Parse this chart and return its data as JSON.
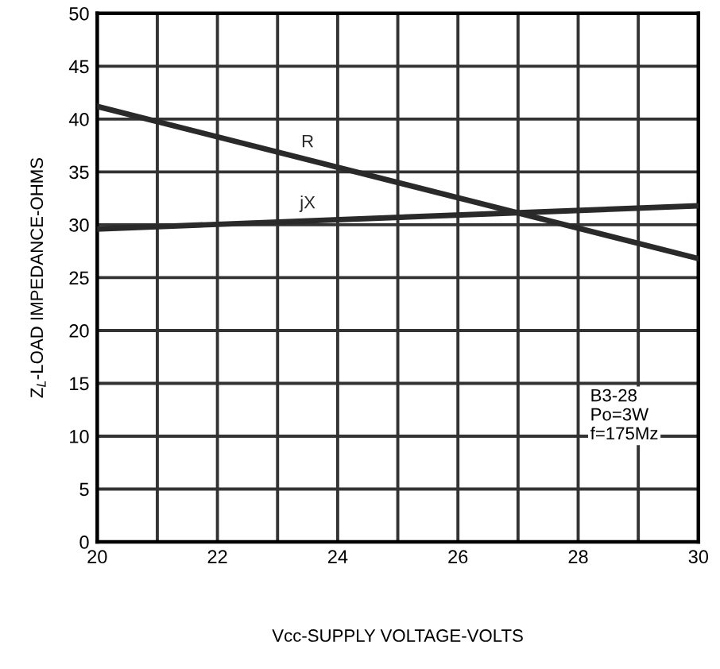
{
  "chart_data": {
    "type": "line",
    "xlabel": "Vcc-SUPPLY VOLTAGE-VOLTS",
    "ylabel": "Z$_{L}$-LOAD IMPEDANCE-OHMS",
    "x": [
      20,
      30
    ],
    "series": [
      {
        "name": "R",
        "color": "#2a2a2a",
        "values": [
          41.2,
          26.8
        ]
      },
      {
        "name": "jX",
        "color": "#2a2a2a",
        "values": [
          29.6,
          31.8
        ]
      }
    ],
    "annotations": [
      "B3-28\nPo=3W\nf=175Mz"
    ],
    "xlim": [
      20,
      30
    ],
    "ylim": [
      0,
      50
    ],
    "xticks": [
      20,
      {
        "value": 21,
        "label": null
      },
      22,
      {
        "value": 23,
        "label": null
      },
      24,
      {
        "value": 25,
        "label": null
      },
      26,
      {
        "value": 27,
        "label": null
      },
      28,
      {
        "value": 29,
        "label": null
      },
      30
    ],
    "yticks": [
      0,
      5,
      10,
      15,
      20,
      25,
      30,
      35,
      40,
      45,
      50
    ],
    "grid": true,
    "marker": "none",
    "line_style": "solid",
    "legend": false
  }
}
